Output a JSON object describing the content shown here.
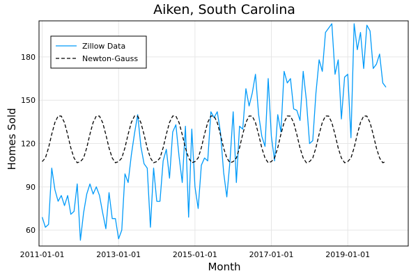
{
  "chart_data": {
    "type": "line",
    "title": "Aiken, South Carolina",
    "xlabel": "Month",
    "ylabel": "Homes Sold",
    "xlim": [
      "2010-12-01",
      "2020-08-01"
    ],
    "ylim": [
      49,
      205
    ],
    "x_ticks": [
      "2011-01-01",
      "2013-01-01",
      "2015-01-01",
      "2017-01-01",
      "2019-01-01"
    ],
    "y_ticks": [
      60,
      90,
      120,
      150,
      180
    ],
    "grid": true,
    "legend_position": "top-left",
    "series": [
      {
        "name": "Zillow Data",
        "style": "solid",
        "color": "#009af9",
        "x_start": "2011-01-01",
        "frequency": "monthly",
        "values": [
          69,
          62,
          64,
          103,
          88,
          80,
          84,
          77,
          84,
          71,
          73,
          92,
          53,
          72,
          85,
          92,
          85,
          90,
          84,
          72,
          61,
          86,
          68,
          68,
          54,
          60,
          99,
          93,
          112,
          127,
          140,
          118,
          106,
          103,
          62,
          103,
          80,
          80,
          108,
          116,
          96,
          128,
          133,
          111,
          93,
          132,
          69,
          130,
          90,
          75,
          105,
          110,
          108,
          142,
          138,
          142,
          128,
          100,
          83,
          108,
          142,
          93,
          132,
          130,
          158,
          146,
          155,
          168,
          140,
          125,
          118,
          165,
          125,
          108,
          140,
          128,
          170,
          162,
          165,
          144,
          143,
          136,
          170,
          150,
          120,
          122,
          155,
          178,
          170,
          197,
          200,
          203,
          168,
          178,
          137,
          166,
          168,
          124,
          203,
          185,
          197,
          172,
          202,
          198,
          172,
          175,
          182,
          162,
          159
        ]
      },
      {
        "name": "Newton-Gauss",
        "style": "dashed",
        "color": "#000000",
        "x_start": "2011-01-01",
        "frequency": "monthly",
        "values": [
          107.5,
          110.0,
          117.1,
          126.5,
          134.6,
          139.1,
          139.0,
          134.5,
          126.2,
          116.9,
          110.0,
          106.7,
          107.5,
          110.0,
          117.1,
          126.5,
          134.6,
          139.1,
          139.0,
          134.5,
          126.2,
          116.9,
          110.0,
          106.7,
          107.5,
          110.0,
          117.1,
          126.5,
          134.6,
          139.1,
          139.0,
          134.5,
          126.2,
          116.9,
          110.0,
          106.7,
          107.5,
          110.0,
          117.1,
          126.5,
          134.6,
          139.1,
          139.0,
          134.5,
          126.2,
          116.9,
          110.0,
          106.7,
          107.5,
          110.0,
          117.1,
          126.5,
          134.6,
          139.1,
          139.0,
          134.5,
          126.2,
          116.9,
          110.0,
          106.7,
          107.5,
          110.0,
          117.1,
          126.5,
          134.6,
          139.1,
          139.0,
          134.5,
          126.2,
          116.9,
          110.0,
          106.7,
          107.5,
          110.0,
          117.1,
          126.5,
          134.6,
          139.1,
          139.0,
          134.5,
          126.2,
          116.9,
          110.0,
          106.7,
          107.5,
          110.0,
          117.1,
          126.5,
          134.6,
          139.1,
          139.0,
          134.5,
          126.2,
          116.9,
          110.0,
          106.7,
          107.5,
          110.0,
          117.1,
          126.5,
          134.6,
          139.1,
          139.0,
          134.5,
          126.2,
          116.9,
          110.0,
          106.7,
          107.5
        ]
      }
    ]
  }
}
